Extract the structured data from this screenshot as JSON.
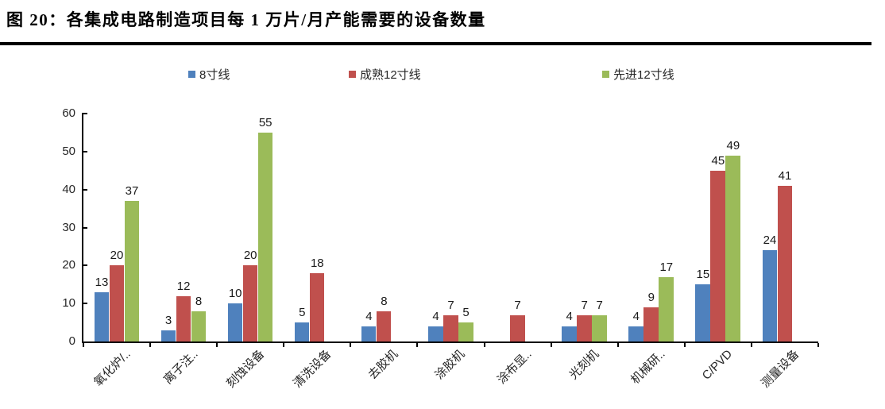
{
  "title": "图 20：各集成电路制造项目每 1 万片/月产能需要的设备数量",
  "legend": [
    {
      "label": "8寸线",
      "color": "#4F81BD"
    },
    {
      "label": "成熟12寸线",
      "color": "#C0504D"
    },
    {
      "label": "先进12寸线",
      "color": "#9BBB59"
    }
  ],
  "chart_data": {
    "type": "bar",
    "categories": [
      "氧化炉/..",
      "离子注..",
      "刻蚀设备",
      "清洗设备",
      "去胶机",
      "涂胶机",
      "涂布显..",
      "光刻机",
      "机械研..",
      "C/PVD",
      "测量设备"
    ],
    "series": [
      {
        "name": "8寸线",
        "color": "#4F81BD",
        "values": [
          13,
          3,
          10,
          5,
          4,
          4,
          null,
          4,
          4,
          15,
          24
        ]
      },
      {
        "name": "成熟12寸线",
        "color": "#C0504D",
        "values": [
          20,
          12,
          20,
          18,
          8,
          7,
          7,
          7,
          9,
          45,
          41
        ]
      },
      {
        "name": "先进12寸线",
        "color": "#9BBB59",
        "values": [
          37,
          8,
          55,
          null,
          null,
          5,
          null,
          7,
          17,
          49,
          null
        ]
      }
    ],
    "xlabel": "",
    "ylabel": "",
    "ylim": [
      0,
      60
    ],
    "yticks": [
      0,
      10,
      20,
      30,
      40,
      50,
      60
    ],
    "grid": false,
    "legend_position": "top",
    "xtick_rotation": 45,
    "bar_labels": true
  }
}
